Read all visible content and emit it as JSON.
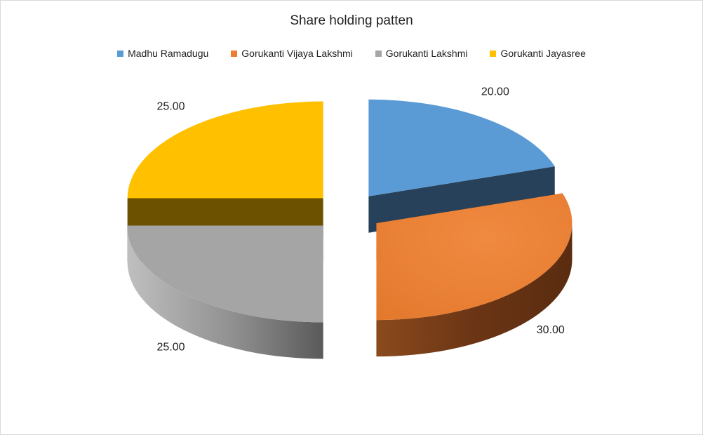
{
  "chart_data": {
    "type": "pie",
    "title": "Share holding patten",
    "legend_position": "top",
    "series": [
      {
        "name": "Madhu Ramadugu",
        "value": 20.0,
        "label": "20.00",
        "color": "#5B9BD5"
      },
      {
        "name": "Gorukanti Vijaya Lakshmi",
        "value": 30.0,
        "label": "30.00",
        "color": "#ED7D31"
      },
      {
        "name": "Gorukanti Lakshmi",
        "value": 25.0,
        "label": "25.00",
        "color": "#A5A5A5"
      },
      {
        "name": "Gorukanti Jayasree",
        "value": 25.0,
        "label": "25.00",
        "color": "#FFC000"
      }
    ]
  },
  "legend": [
    {
      "label": "Madhu Ramadugu",
      "color": "#5B9BD5"
    },
    {
      "label": "Gorukanti Vijaya Lakshmi",
      "color": "#ED7D31"
    },
    {
      "label": "Gorukanti Lakshmi",
      "color": "#A5A5A5"
    },
    {
      "label": "Gorukanti Jayasree",
      "color": "#FFC000"
    }
  ]
}
